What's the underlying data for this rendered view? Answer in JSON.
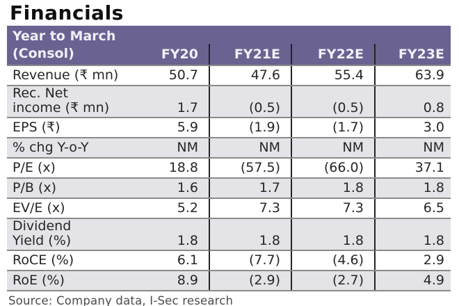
{
  "title": "Financials",
  "header": {
    "label_line1": "Year to March",
    "label_line2": "(Consol)",
    "columns": [
      "FY20",
      "FY21E",
      "FY22E",
      "FY23E"
    ]
  },
  "table": {
    "rows": [
      {
        "label": "Revenue (₹ mn)",
        "values": [
          "50.7",
          "47.6",
          "55.4",
          "63.9"
        ]
      },
      {
        "label": "Rec. Net",
        "label2": "income (₹ mn)",
        "values": [
          "1.7",
          "(0.5)",
          "(0.5)",
          "0.8"
        ]
      },
      {
        "label": "EPS (₹)",
        "values": [
          "5.9",
          "(1.9)",
          "(1.7)",
          "3.0"
        ]
      },
      {
        "label": "% chg Y-o-Y",
        "values": [
          "NM",
          "NM",
          "NM",
          "NM"
        ]
      },
      {
        "label": "P/E (x)",
        "values": [
          "18.8",
          "(57.5)",
          "(66.0)",
          "37.1"
        ]
      },
      {
        "label": "P/B (x)",
        "values": [
          "1.6",
          "1.7",
          "1.8",
          "1.8"
        ]
      },
      {
        "label": "EV/E (x)",
        "values": [
          "5.2",
          "7.3",
          "7.3",
          "6.5"
        ]
      },
      {
        "label": "Dividend",
        "label2": "Yield (%)",
        "values": [
          "1.8",
          "1.8",
          "1.8",
          "1.8"
        ]
      },
      {
        "label": "RoCE (%)",
        "values": [
          "6.1",
          "(7.7)",
          "(4.6)",
          "2.9"
        ]
      },
      {
        "label": "RoE (%)",
        "values": [
          "8.9",
          "(2.9)",
          "(2.7)",
          "4.9"
        ]
      }
    ]
  },
  "footer": {
    "source": "Source: Company data, I-Sec research"
  },
  "colors": {
    "header_bg": "#6a6291",
    "header_text": "#f1eff6",
    "row_stripe": "#e4e3e8",
    "grid_line": "#8a8a8a",
    "column_divider": "#242424",
    "text": "#262626",
    "source_text": "#4c4c4c"
  }
}
